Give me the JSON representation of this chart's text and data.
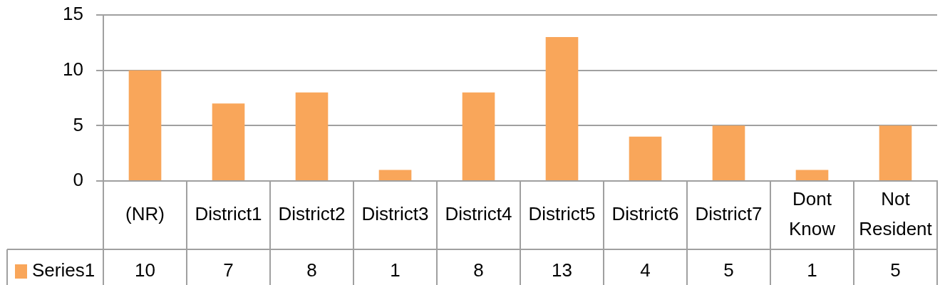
{
  "chart_data": {
    "type": "bar",
    "categories": [
      "(NR)",
      "District1",
      "District2",
      "District3",
      "District4",
      "District5",
      "District6",
      "District7",
      "Dont Know",
      "Not Resident"
    ],
    "series": [
      {
        "name": "Series1",
        "color": "#f9a65a",
        "values": [
          10,
          7,
          8,
          1,
          8,
          13,
          4,
          5,
          1,
          5
        ]
      }
    ],
    "ylim": [
      0,
      15
    ],
    "yticks": [
      0,
      5,
      10,
      15
    ],
    "grid": "y",
    "legend": "bottom",
    "data_labels": true
  }
}
